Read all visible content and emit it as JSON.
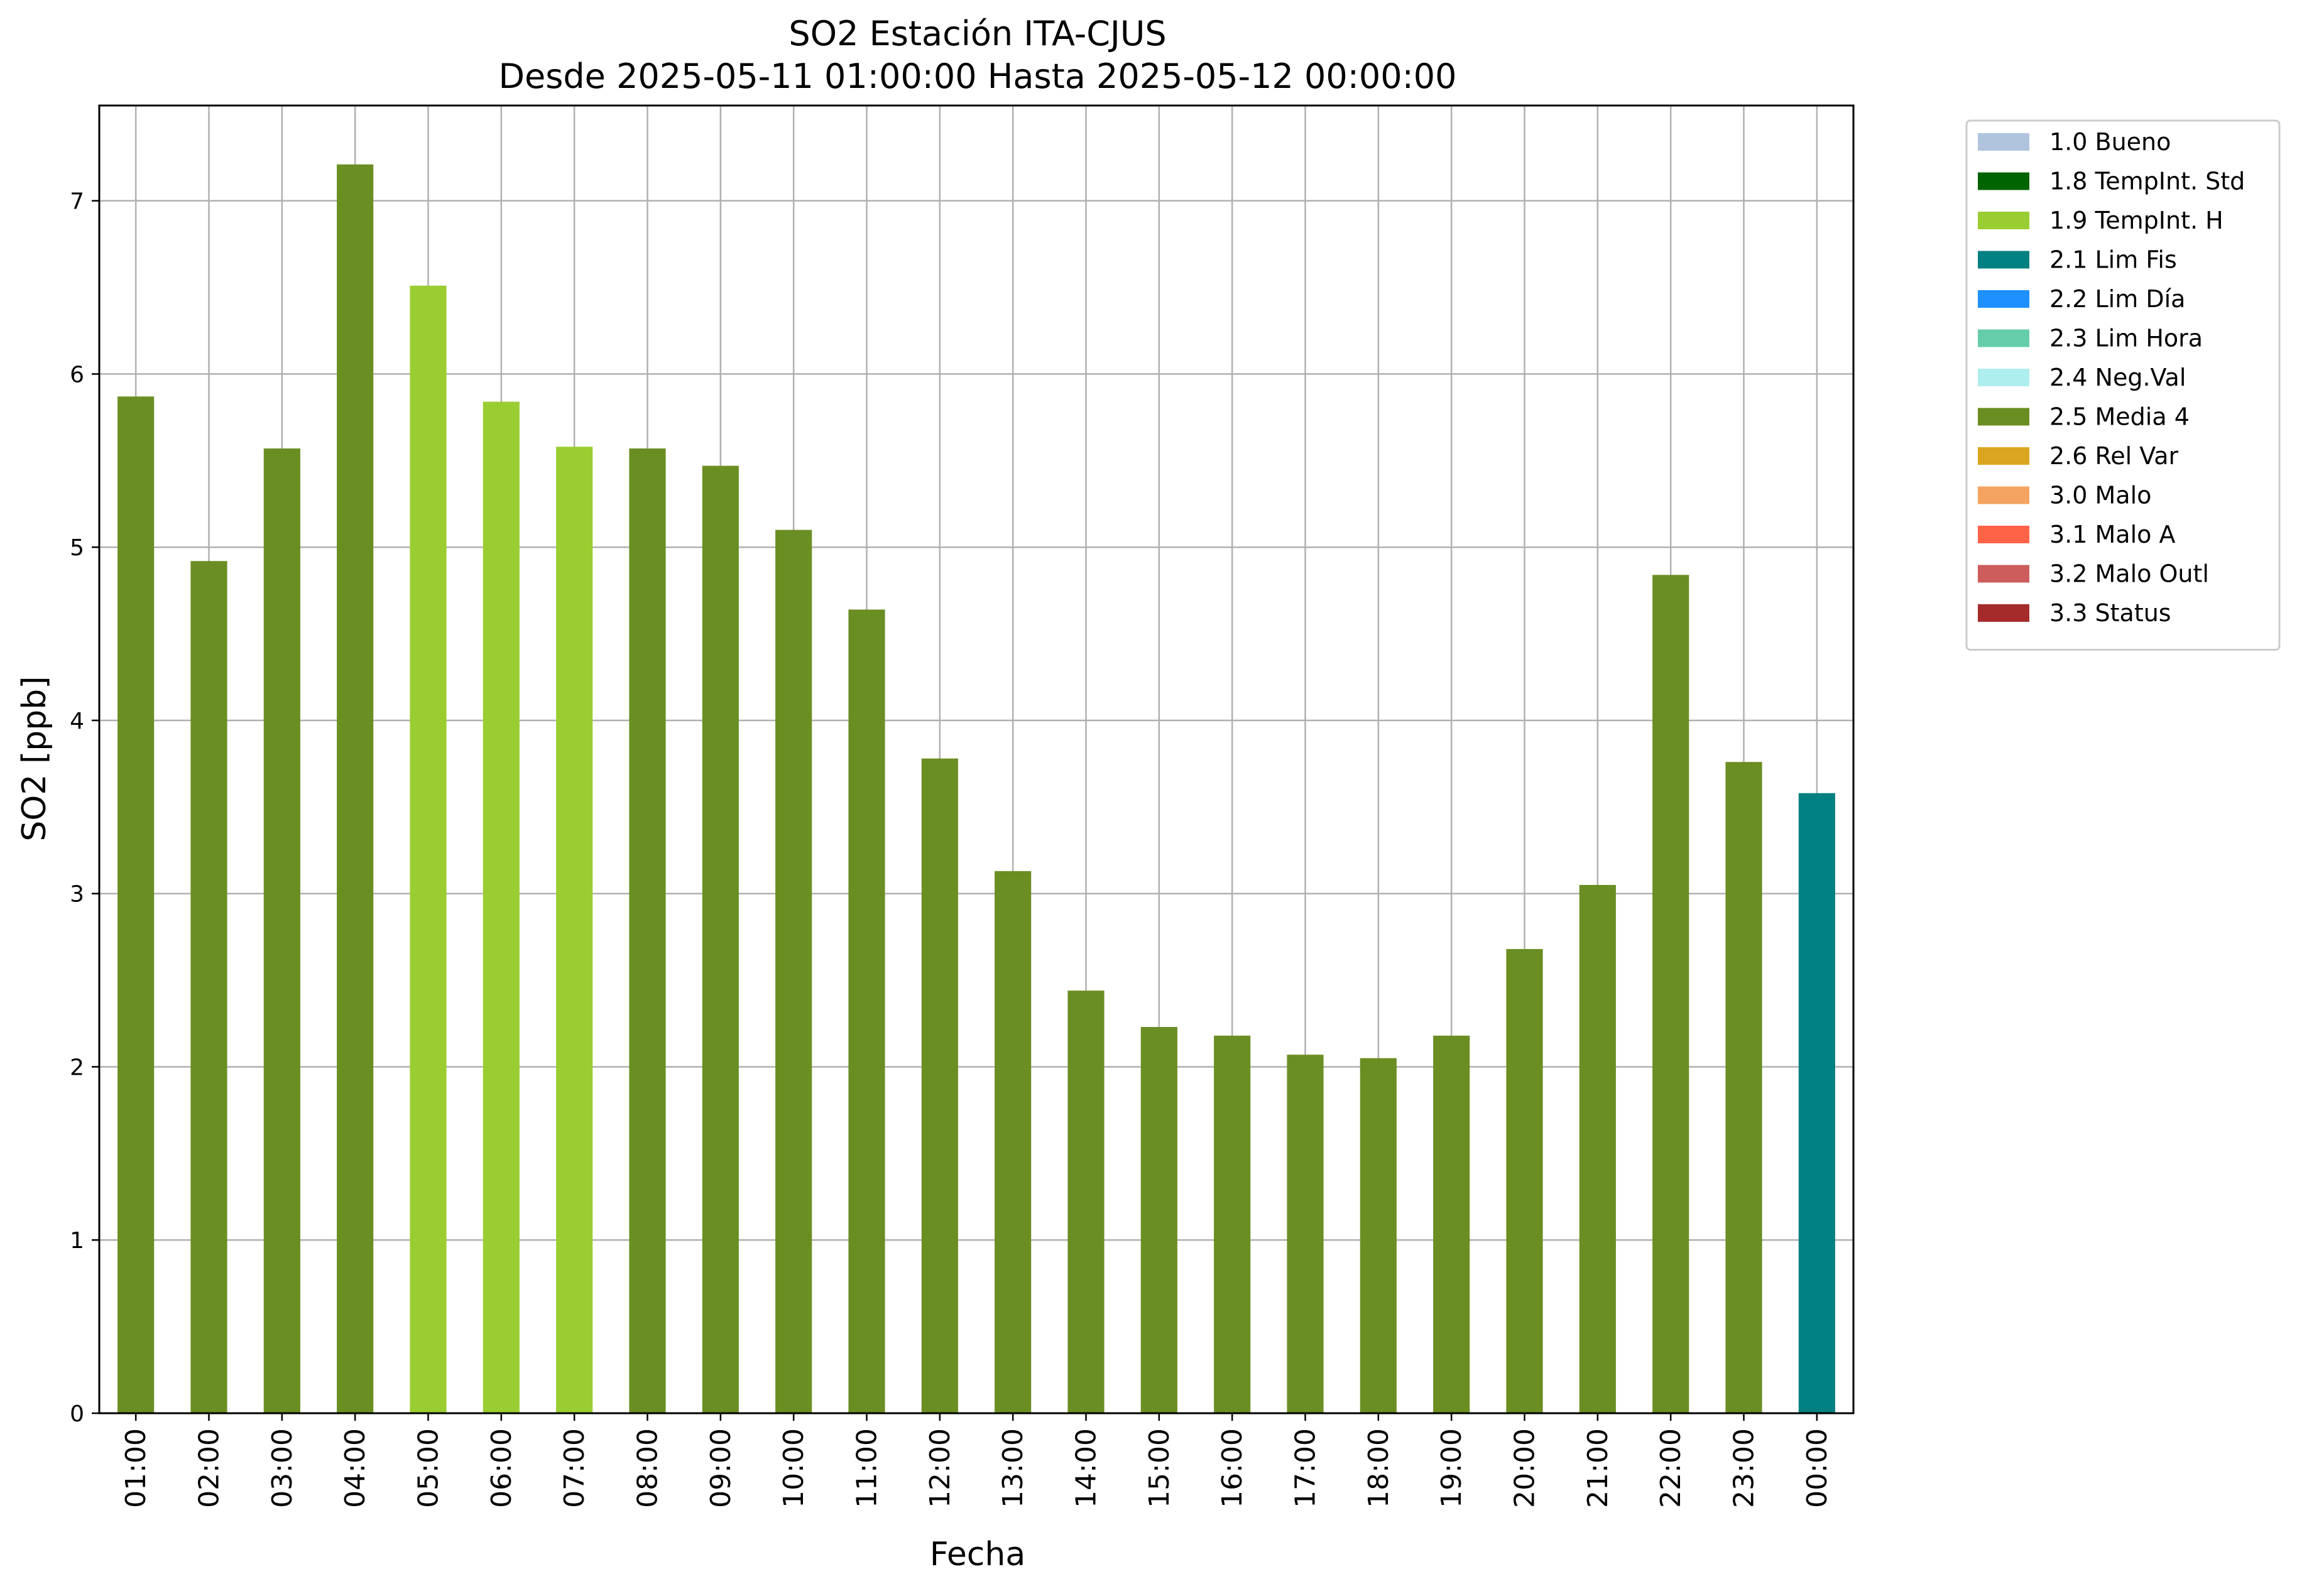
{
  "chart_data": {
    "type": "bar",
    "title": "SO2 Estación ITA-CJUS",
    "subtitle": "Desde 2025-05-11 01:00:00 Hasta 2025-05-12 00:00:00",
    "xlabel": "Fecha",
    "ylabel": "SO2 [ppb]",
    "ylim": [
      0,
      7.55
    ],
    "yticks": [
      0,
      1,
      2,
      3,
      4,
      5,
      6,
      7
    ],
    "grid": true,
    "legend_position": "outside-right",
    "categories": [
      "01:00",
      "02:00",
      "03:00",
      "04:00",
      "05:00",
      "06:00",
      "07:00",
      "08:00",
      "09:00",
      "10:00",
      "11:00",
      "12:00",
      "13:00",
      "14:00",
      "15:00",
      "16:00",
      "17:00",
      "18:00",
      "19:00",
      "20:00",
      "21:00",
      "22:00",
      "23:00",
      "00:00"
    ],
    "values": [
      5.87,
      4.92,
      5.57,
      7.21,
      6.51,
      5.84,
      5.58,
      5.57,
      5.47,
      5.1,
      4.64,
      3.78,
      3.13,
      2.44,
      2.23,
      2.18,
      2.07,
      2.05,
      2.18,
      2.68,
      3.05,
      4.84,
      3.76,
      3.58
    ],
    "flags": [
      "2.5",
      "2.5",
      "2.5",
      "2.5",
      "1.9",
      "1.9",
      "1.9",
      "2.5",
      "2.5",
      "2.5",
      "2.5",
      "2.5",
      "2.5",
      "2.5",
      "2.5",
      "2.5",
      "2.5",
      "2.5",
      "2.5",
      "2.5",
      "2.5",
      "2.5",
      "2.5",
      "2.1"
    ],
    "legend": [
      {
        "code": "1.0",
        "label": "1.0 Bueno",
        "color": "#b0c4de"
      },
      {
        "code": "1.8",
        "label": "1.8 TempInt. Std",
        "color": "#006400"
      },
      {
        "code": "1.9",
        "label": "1.9 TempInt. H",
        "color": "#9acd32"
      },
      {
        "code": "2.1",
        "label": "2.1 Lim Fis",
        "color": "#008080"
      },
      {
        "code": "2.2",
        "label": "2.2 Lim Día",
        "color": "#1e90ff"
      },
      {
        "code": "2.3",
        "label": "2.3 Lim Hora",
        "color": "#66cdaa"
      },
      {
        "code": "2.4",
        "label": "2.4 Neg.Val",
        "color": "#afeeee"
      },
      {
        "code": "2.5",
        "label": "2.5 Media 4",
        "color": "#6b8e23"
      },
      {
        "code": "2.6",
        "label": "2.6 Rel Var",
        "color": "#daa520"
      },
      {
        "code": "3.0",
        "label": "3.0 Malo",
        "color": "#f4a460"
      },
      {
        "code": "3.1",
        "label": "3.1 Malo A",
        "color": "#ff6347"
      },
      {
        "code": "3.2",
        "label": "3.2 Malo Outl",
        "color": "#cd5c5c"
      },
      {
        "code": "3.3",
        "label": "3.3 Status",
        "color": "#a52a2a"
      }
    ]
  }
}
